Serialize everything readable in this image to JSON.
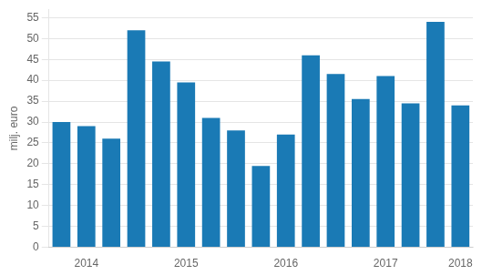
{
  "chart_data": {
    "type": "bar",
    "categories": [
      null,
      "2014",
      null,
      null,
      null,
      "2015",
      null,
      null,
      null,
      "2016",
      null,
      null,
      null,
      "2017",
      null,
      null,
      "2018"
    ],
    "values": [
      30.0,
      29.0,
      26.0,
      52.0,
      44.5,
      39.5,
      31.0,
      28.0,
      19.5,
      27.0,
      46.0,
      41.5,
      35.5,
      41.0,
      34.5,
      54.0,
      34.0
    ],
    "color": "#1a7ab5",
    "ylabel": "milj. euro",
    "ylim": [
      0,
      57
    ],
    "yticks": [
      0,
      5,
      10,
      15,
      20,
      25,
      30,
      35,
      40,
      45,
      50,
      55
    ],
    "grid": true
  }
}
